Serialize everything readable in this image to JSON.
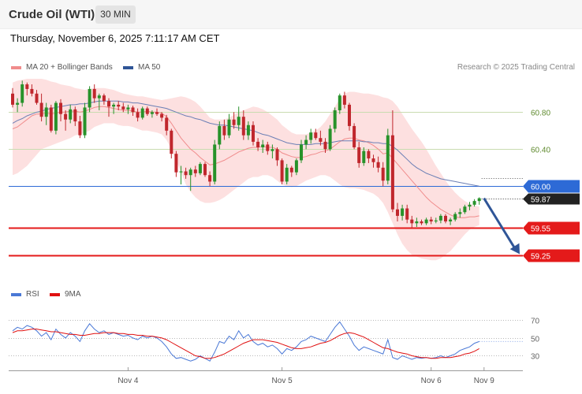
{
  "header": {
    "title": "Crude Oil (WTI)",
    "timeframe": "30 MIN",
    "datetime": "Thursday, November 6, 2025 7:11:17 AM CET"
  },
  "legend_main": [
    {
      "label": "MA 20 + Bollinger Bands",
      "color": "#f08c8c"
    },
    {
      "label": "MA 50",
      "color": "#2f5597"
    }
  ],
  "legend_rsi": [
    {
      "label": "RSI",
      "color": "#4a78d6"
    },
    {
      "label": "9MA",
      "color": "#e01010"
    }
  ],
  "copyright": "Research © 2025 Trading Central",
  "colors": {
    "bull": "#27922a",
    "bear": "#c0272d",
    "resistance": "#c9dcb0",
    "pivot": "#2d6ad6",
    "support": "#e41a1a",
    "arrow": "#2f5597",
    "band": "#fde0e0"
  },
  "chart_data": [
    {
      "type": "candlestick",
      "ylim": [
        58.99,
        61.16
      ],
      "x_tick_labels": [
        "Nov 4",
        "Nov 5",
        "Nov 6",
        "Nov 9"
      ],
      "y_tick_labels": [
        "60.80",
        "60.40"
      ],
      "current_price": {
        "value": 59.87,
        "label": "59.87"
      },
      "levels": [
        {
          "value": 60.8,
          "label": "60.80",
          "kind": "resistance"
        },
        {
          "value": 60.4,
          "label": "60.40",
          "kind": "resistance"
        },
        {
          "value": 60.0,
          "label": "60.00",
          "kind": "pivot"
        },
        {
          "value": 59.55,
          "label": "59.55",
          "kind": "support"
        },
        {
          "value": 59.25,
          "label": "59.25",
          "kind": "support"
        }
      ],
      "candles": [
        [
          61.0,
          61.06,
          60.85,
          60.88
        ],
        [
          60.88,
          60.95,
          60.8,
          60.9
        ],
        [
          60.9,
          61.14,
          60.86,
          61.1
        ],
        [
          61.1,
          61.12,
          60.98,
          61.05
        ],
        [
          61.05,
          61.1,
          60.97,
          61.0
        ],
        [
          61.0,
          61.04,
          60.88,
          60.9
        ],
        [
          60.9,
          61.0,
          60.7,
          60.75
        ],
        [
          60.75,
          60.9,
          60.66,
          60.85
        ],
        [
          60.85,
          60.88,
          60.58,
          60.6
        ],
        [
          60.6,
          60.92,
          60.56,
          60.9
        ],
        [
          60.9,
          60.94,
          60.7,
          60.78
        ],
        [
          60.78,
          60.82,
          60.6,
          60.72
        ],
        [
          60.72,
          60.88,
          60.68,
          60.83
        ],
        [
          60.83,
          60.86,
          60.65,
          60.7
        ],
        [
          60.7,
          60.76,
          60.52,
          60.55
        ],
        [
          60.55,
          60.9,
          60.52,
          60.85
        ],
        [
          60.85,
          61.08,
          60.8,
          61.05
        ],
        [
          61.05,
          61.1,
          60.9,
          60.95
        ],
        [
          60.95,
          61.0,
          60.82,
          60.98
        ],
        [
          60.98,
          61.0,
          60.88,
          60.92
        ],
        [
          60.92,
          60.95,
          60.75,
          60.86
        ],
        [
          60.86,
          60.9,
          60.78,
          60.88
        ],
        [
          60.88,
          60.92,
          60.82,
          60.86
        ],
        [
          60.86,
          60.9,
          60.8,
          60.83
        ],
        [
          60.83,
          60.88,
          60.78,
          60.85
        ],
        [
          60.85,
          60.87,
          60.76,
          60.8
        ],
        [
          60.8,
          60.84,
          60.7,
          60.74
        ],
        [
          60.74,
          60.86,
          60.72,
          60.84
        ],
        [
          60.84,
          60.86,
          60.76,
          60.78
        ],
        [
          60.78,
          60.82,
          60.74,
          60.8
        ],
        [
          60.8,
          60.84,
          60.76,
          60.78
        ],
        [
          60.78,
          60.8,
          60.7,
          60.74
        ],
        [
          60.74,
          60.77,
          60.55,
          60.6
        ],
        [
          60.6,
          60.62,
          60.3,
          60.35
        ],
        [
          60.35,
          60.38,
          60.1,
          60.15
        ],
        [
          60.15,
          60.22,
          60.02,
          60.16
        ],
        [
          60.16,
          60.2,
          60.08,
          60.12
        ],
        [
          60.12,
          60.2,
          59.95,
          60.18
        ],
        [
          60.18,
          60.22,
          60.1,
          60.14
        ],
        [
          60.14,
          60.26,
          60.12,
          60.24
        ],
        [
          60.24,
          60.26,
          60.1,
          60.12
        ],
        [
          60.12,
          60.16,
          60.0,
          60.05
        ],
        [
          60.05,
          60.5,
          60.02,
          60.45
        ],
        [
          60.45,
          60.7,
          60.4,
          60.65
        ],
        [
          60.65,
          60.72,
          60.5,
          60.55
        ],
        [
          60.55,
          60.78,
          60.52,
          60.72
        ],
        [
          60.72,
          60.8,
          60.62,
          60.66
        ],
        [
          60.66,
          60.86,
          60.6,
          60.75
        ],
        [
          60.75,
          60.82,
          60.5,
          60.55
        ],
        [
          60.55,
          60.7,
          60.5,
          60.66
        ],
        [
          60.66,
          60.7,
          60.44,
          60.48
        ],
        [
          60.48,
          60.52,
          60.38,
          60.42
        ],
        [
          60.42,
          60.5,
          60.36,
          60.45
        ],
        [
          60.45,
          60.48,
          60.34,
          60.38
        ],
        [
          60.38,
          60.45,
          60.3,
          60.4
        ],
        [
          60.4,
          60.42,
          60.22,
          60.28
        ],
        [
          60.28,
          60.3,
          60.02,
          60.05
        ],
        [
          60.05,
          60.24,
          60.02,
          60.2
        ],
        [
          60.2,
          60.22,
          60.1,
          60.15
        ],
        [
          60.15,
          60.3,
          60.12,
          60.28
        ],
        [
          60.28,
          60.5,
          60.25,
          60.45
        ],
        [
          60.45,
          60.55,
          60.4,
          60.5
        ],
        [
          60.5,
          60.62,
          60.46,
          60.58
        ],
        [
          60.58,
          60.62,
          60.5,
          60.52
        ],
        [
          60.52,
          60.6,
          60.44,
          60.48
        ],
        [
          60.48,
          60.52,
          60.36,
          60.4
        ],
        [
          60.4,
          60.66,
          60.38,
          60.62
        ],
        [
          60.62,
          60.85,
          60.58,
          60.82
        ],
        [
          60.82,
          61.0,
          60.78,
          60.98
        ],
        [
          60.98,
          61.02,
          60.84,
          60.88
        ],
        [
          60.88,
          60.9,
          60.6,
          60.65
        ],
        [
          60.65,
          60.68,
          60.4,
          60.42
        ],
        [
          60.42,
          60.48,
          60.2,
          60.25
        ],
        [
          60.25,
          60.42,
          60.22,
          60.38
        ],
        [
          60.38,
          60.4,
          60.25,
          60.3
        ],
        [
          60.3,
          60.34,
          60.2,
          60.26
        ],
        [
          60.26,
          60.32,
          60.15,
          60.2
        ],
        [
          60.2,
          60.26,
          60.0,
          60.06
        ],
        [
          60.06,
          60.62,
          60.02,
          60.55
        ],
        [
          60.55,
          60.82,
          59.72,
          59.75
        ],
        [
          59.75,
          59.82,
          59.62,
          59.68
        ],
        [
          59.68,
          59.8,
          59.63,
          59.76
        ],
        [
          59.76,
          59.8,
          59.6,
          59.64
        ],
        [
          59.64,
          59.68,
          59.55,
          59.6
        ],
        [
          59.6,
          59.66,
          59.56,
          59.62
        ],
        [
          59.62,
          59.64,
          59.58,
          59.6
        ],
        [
          59.6,
          59.66,
          59.58,
          59.64
        ],
        [
          59.64,
          59.67,
          59.59,
          59.62
        ],
        [
          59.62,
          59.66,
          59.6,
          59.63
        ],
        [
          59.63,
          59.7,
          59.6,
          59.68
        ],
        [
          59.68,
          59.7,
          59.6,
          59.62
        ],
        [
          59.62,
          59.66,
          59.58,
          59.64
        ],
        [
          59.64,
          59.72,
          59.62,
          59.7
        ],
        [
          59.7,
          59.76,
          59.66,
          59.72
        ],
        [
          59.72,
          59.8,
          59.7,
          59.78
        ],
        [
          59.78,
          59.83,
          59.74,
          59.8
        ],
        [
          59.8,
          59.86,
          59.78,
          59.84
        ],
        [
          59.84,
          59.88,
          59.8,
          59.87
        ]
      ],
      "ma20": [
        60.62,
        60.64,
        60.68,
        60.72,
        60.76,
        60.78,
        60.78,
        60.79,
        60.78,
        60.79,
        60.8,
        60.8,
        60.81,
        60.81,
        60.8,
        60.81,
        60.83,
        60.85,
        60.86,
        60.86,
        60.85,
        60.84,
        60.83,
        60.82,
        60.82,
        60.81,
        60.8,
        60.8,
        60.81,
        60.8,
        60.8,
        60.79,
        60.75,
        60.68,
        60.6,
        60.52,
        60.46,
        60.4,
        60.36,
        60.31,
        60.27,
        60.23,
        60.24,
        60.26,
        60.28,
        60.31,
        60.34,
        60.37,
        60.39,
        60.41,
        60.42,
        60.42,
        60.43,
        60.42,
        60.42,
        60.4,
        60.36,
        60.34,
        60.32,
        60.31,
        60.31,
        60.32,
        60.34,
        60.35,
        60.37,
        60.38,
        60.4,
        60.44,
        60.48,
        60.51,
        60.52,
        60.52,
        60.5,
        60.49,
        60.47,
        60.44,
        60.4,
        60.35,
        60.36,
        60.3,
        60.24,
        60.18,
        60.12,
        60.06,
        60.0,
        59.94,
        59.88,
        59.83,
        59.79,
        59.75,
        59.72,
        59.69,
        59.67,
        59.66,
        59.66,
        59.67,
        59.67,
        59.68
      ],
      "ma50": [
        60.68,
        60.71,
        60.73,
        60.76,
        60.78,
        60.8,
        60.81,
        60.83,
        60.84,
        60.85,
        60.86,
        60.87,
        60.88,
        60.88,
        60.89,
        60.89,
        60.9,
        60.91,
        60.92,
        60.92,
        60.92,
        60.92,
        60.92,
        60.91,
        60.91,
        60.9,
        60.9,
        60.89,
        60.88,
        60.87,
        60.86,
        60.85,
        60.84,
        60.82,
        60.8,
        60.78,
        60.76,
        60.75,
        60.73,
        60.72,
        60.7,
        60.68,
        60.67,
        60.66,
        60.66,
        60.65,
        60.64,
        60.63,
        60.62,
        60.61,
        60.6,
        60.58,
        60.56,
        60.55,
        60.53,
        60.51,
        60.49,
        60.47,
        60.46,
        60.45,
        60.45,
        60.45,
        60.45,
        60.46,
        60.46,
        60.46,
        60.47,
        60.48,
        60.49,
        60.49,
        60.49,
        60.49,
        60.49,
        60.48,
        60.48,
        60.47,
        60.47,
        60.46,
        60.46,
        60.43,
        60.39,
        60.34,
        60.29,
        60.24,
        60.2,
        60.17,
        60.14,
        60.12,
        60.1,
        60.08,
        60.07,
        60.06,
        60.05,
        60.04,
        60.03,
        60.02,
        60.01,
        60.0
      ],
      "bb_upper": [
        61.12,
        61.14,
        61.15,
        61.16,
        61.16,
        61.16,
        61.16,
        61.15,
        61.13,
        61.12,
        61.1,
        61.09,
        61.08,
        61.06,
        61.05,
        61.04,
        61.05,
        61.06,
        61.06,
        61.06,
        61.05,
        61.04,
        61.02,
        61.0,
        60.99,
        60.98,
        60.97,
        60.97,
        60.96,
        60.95,
        60.94,
        60.93,
        60.94,
        60.95,
        60.96,
        60.97,
        60.96,
        60.94,
        60.91,
        60.86,
        60.8,
        60.74,
        60.72,
        60.72,
        60.72,
        60.74,
        60.77,
        60.8,
        60.82,
        60.84,
        60.86,
        60.85,
        60.83,
        60.8,
        60.76,
        60.72,
        60.66,
        60.62,
        60.58,
        60.56,
        60.56,
        60.56,
        60.58,
        60.6,
        60.64,
        60.7,
        60.78,
        60.86,
        60.94,
        61.0,
        61.02,
        61.02,
        61.01,
        61.0,
        61.0,
        60.99,
        60.98,
        60.96,
        60.95,
        60.92,
        60.86,
        60.78,
        60.7,
        60.62,
        60.55,
        60.48,
        60.4,
        60.31,
        60.22,
        60.14,
        60.06,
        59.99,
        59.93,
        59.88,
        59.84,
        59.81,
        59.79,
        59.78
      ],
      "bb_lower": [
        60.12,
        60.14,
        60.18,
        60.22,
        60.28,
        60.34,
        60.4,
        60.42,
        60.44,
        60.46,
        60.48,
        60.5,
        60.52,
        60.55,
        60.56,
        60.58,
        60.6,
        60.64,
        60.66,
        60.68,
        60.68,
        60.68,
        60.66,
        60.65,
        60.65,
        60.64,
        60.62,
        60.6,
        60.6,
        60.59,
        60.58,
        60.56,
        60.5,
        60.4,
        60.28,
        60.15,
        60.02,
        59.94,
        59.88,
        59.84,
        59.82,
        59.82,
        59.83,
        59.85,
        59.88,
        59.92,
        59.96,
        60.0,
        60.04,
        60.08,
        60.1,
        60.1,
        60.12,
        60.12,
        60.1,
        60.06,
        60.02,
        60.0,
        59.99,
        60.0,
        60.03,
        60.06,
        60.08,
        60.1,
        60.12,
        60.12,
        60.1,
        60.06,
        60.02,
        59.99,
        59.98,
        59.98,
        59.97,
        59.96,
        59.94,
        59.92,
        59.88,
        59.82,
        59.72,
        59.6,
        59.48,
        59.38,
        59.31,
        59.26,
        59.24,
        59.22,
        59.21,
        59.2,
        59.2,
        59.22,
        59.26,
        59.3,
        59.36,
        59.42,
        59.48,
        59.53,
        59.56,
        59.58
      ]
    },
    {
      "type": "line",
      "ylim": [
        18,
        80
      ],
      "y_tick_labels": [
        "70",
        "50",
        "30"
      ],
      "series": [
        {
          "name": "RSI",
          "values": [
            58,
            62,
            60,
            64,
            62,
            58,
            52,
            56,
            48,
            60,
            54,
            50,
            56,
            52,
            46,
            58,
            66,
            60,
            56,
            58,
            54,
            56,
            54,
            52,
            53,
            50,
            48,
            52,
            50,
            52,
            50,
            46,
            40,
            32,
            27,
            28,
            26,
            24,
            26,
            30,
            27,
            24,
            34,
            46,
            44,
            52,
            48,
            58,
            50,
            54,
            46,
            42,
            44,
            40,
            42,
            38,
            32,
            38,
            36,
            40,
            46,
            48,
            52,
            50,
            48,
            46,
            54,
            62,
            68,
            60,
            52,
            42,
            36,
            40,
            38,
            36,
            34,
            32,
            48,
            28,
            26,
            30,
            28,
            26,
            28,
            27,
            28,
            27,
            28,
            30,
            28,
            30,
            32,
            36,
            38,
            40,
            44,
            46
          ]
        },
        {
          "name": "9MA",
          "values": [
            56,
            58,
            58,
            59,
            60,
            60,
            59,
            58,
            57,
            57,
            56,
            55,
            54,
            54,
            53,
            53,
            54,
            55,
            55,
            56,
            56,
            56,
            55,
            55,
            54,
            54,
            53,
            53,
            52,
            52,
            51,
            50,
            48,
            45,
            42,
            39,
            36,
            33,
            30,
            29,
            27,
            27,
            28,
            30,
            32,
            35,
            38,
            41,
            44,
            46,
            48,
            48,
            48,
            47,
            46,
            45,
            43,
            41,
            39,
            38,
            38,
            39,
            40,
            42,
            44,
            45,
            47,
            50,
            53,
            55,
            56,
            55,
            53,
            51,
            48,
            45,
            42,
            39,
            38,
            36,
            34,
            33,
            32,
            30,
            29,
            28,
            28,
            27,
            27,
            28,
            28,
            28,
            29,
            30,
            32,
            33,
            35,
            38
          ]
        }
      ]
    }
  ]
}
